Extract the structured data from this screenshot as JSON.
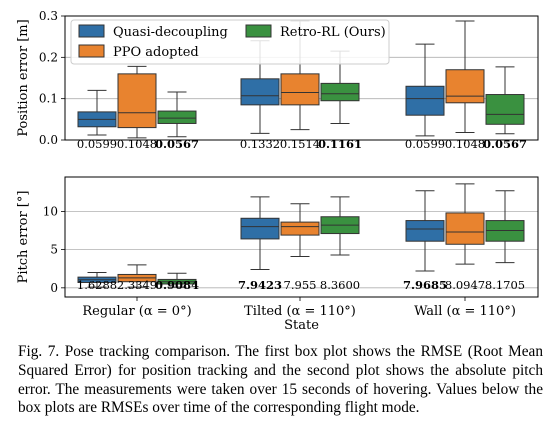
{
  "chart_data": [
    {
      "type": "box",
      "ylabel": "Position error [m]",
      "ylim": [
        0,
        0.3
      ],
      "yticks": [
        "0.0",
        "0.1",
        "0.2",
        "0.3"
      ],
      "grid": "y",
      "legend": {
        "placement": "top-left",
        "columns": 2,
        "entries": [
          "Quasi-decoupling",
          "PPO adopted",
          "Retro-RL (Ours)"
        ]
      },
      "categories": [
        "Regular",
        "Tilted",
        "Wall"
      ],
      "series": [
        {
          "name": "Quasi-decoupling",
          "color": "#2f6fa6",
          "boxes": [
            {
              "whislo": 0.012,
              "q1": 0.032,
              "med": 0.05,
              "q3": 0.068,
              "whishi": 0.12
            },
            {
              "whislo": 0.016,
              "q1": 0.085,
              "med": 0.107,
              "q3": 0.148,
              "whishi": 0.24
            },
            {
              "whislo": 0.01,
              "q1": 0.06,
              "med": 0.1,
              "q3": 0.13,
              "whishi": 0.232
            }
          ]
        },
        {
          "name": "PPO adopted",
          "color": "#e8832f",
          "boxes": [
            {
              "whislo": 0.005,
              "q1": 0.03,
              "med": 0.066,
              "q3": 0.16,
              "whishi": 0.178
            },
            {
              "whislo": 0.025,
              "q1": 0.085,
              "med": 0.115,
              "q3": 0.16,
              "whishi": 0.288
            },
            {
              "whislo": 0.018,
              "q1": 0.09,
              "med": 0.106,
              "q3": 0.17,
              "whishi": 0.288
            }
          ]
        },
        {
          "name": "Retro-RL (Ours)",
          "color": "#3a9140",
          "boxes": [
            {
              "whislo": 0.008,
              "q1": 0.04,
              "med": 0.053,
              "q3": 0.07,
              "whishi": 0.116
            },
            {
              "whislo": 0.04,
              "q1": 0.095,
              "med": 0.112,
              "q3": 0.137,
              "whishi": 0.215
            },
            {
              "whislo": 0.015,
              "q1": 0.038,
              "med": 0.062,
              "q3": 0.11,
              "whishi": 0.177
            }
          ]
        }
      ],
      "rmse_labels": [
        [
          {
            "text": "0.0599",
            "bold": false
          },
          {
            "text": "0.1048",
            "bold": false
          },
          {
            "text": "0.0567",
            "bold": true
          }
        ],
        [
          {
            "text": "0.1332",
            "bold": false
          },
          {
            "text": "0.1514",
            "bold": false
          },
          {
            "text": "0.1161",
            "bold": true
          }
        ],
        [
          {
            "text": "0.0599",
            "bold": false
          },
          {
            "text": "0.1048",
            "bold": false
          },
          {
            "text": "0.0567",
            "bold": true
          }
        ]
      ]
    },
    {
      "type": "box",
      "ylabel": "Pitch error [°]",
      "ylim": [
        -1.2,
        14.5
      ],
      "yticks": [
        "0",
        "5",
        "10"
      ],
      "grid": "y",
      "xlabel": "State",
      "categories": [
        "Regular (α = 0°)",
        "Tilted (α = 110°)",
        "Wall (α = 110°)"
      ],
      "series": [
        {
          "name": "Quasi-decoupling",
          "color": "#2f6fa6",
          "boxes": [
            {
              "whislo": 0.1,
              "q1": 0.7,
              "med": 1.05,
              "q3": 1.4,
              "whishi": 2.0
            },
            {
              "whislo": 2.4,
              "q1": 6.4,
              "med": 8.0,
              "q3": 9.1,
              "whishi": 11.9
            },
            {
              "whislo": 2.2,
              "q1": 6.1,
              "med": 7.7,
              "q3": 8.8,
              "whishi": 12.7
            }
          ]
        },
        {
          "name": "PPO adopted",
          "color": "#e8832f",
          "boxes": [
            {
              "whislo": 0.1,
              "q1": 0.8,
              "med": 1.3,
              "q3": 1.75,
              "whishi": 3.0
            },
            {
              "whislo": 4.1,
              "q1": 6.9,
              "med": 8.0,
              "q3": 8.6,
              "whishi": 11.0
            },
            {
              "whislo": 3.1,
              "q1": 5.7,
              "med": 7.3,
              "q3": 9.8,
              "whishi": 13.6
            }
          ]
        },
        {
          "name": "Retro-RL (Ours)",
          "color": "#3a9140",
          "boxes": [
            {
              "whislo": 0.1,
              "q1": 0.5,
              "med": 0.8,
              "q3": 1.1,
              "whishi": 1.9
            },
            {
              "whislo": 4.3,
              "q1": 7.1,
              "med": 8.2,
              "q3": 9.3,
              "whishi": 11.9
            },
            {
              "whislo": 3.3,
              "q1": 6.1,
              "med": 7.5,
              "q3": 8.8,
              "whishi": 12.7
            }
          ]
        }
      ],
      "rmse_labels": [
        [
          {
            "text": "1.6288",
            "bold": false
          },
          {
            "text": "2.3349",
            "bold": false
          },
          {
            "text": "0.9084",
            "bold": true
          }
        ],
        [
          {
            "text": "7.9423",
            "bold": true
          },
          {
            "text": "7.955",
            "bold": false
          },
          {
            "text": "8.3600",
            "bold": false
          }
        ],
        [
          {
            "text": "7.9685",
            "bold": true
          },
          {
            "text": "8.0947",
            "bold": false
          },
          {
            "text": "8.1705",
            "bold": false
          }
        ]
      ]
    }
  ],
  "caption": "Fig. 7. Pose tracking comparison. The first box plot shows the RMSE (Root Mean Squared Error) for position tracking and the second plot shows the absolute pitch error. The measurements were taken over 15 seconds of hovering. Values below the box plots are RMSEs over time of the corresponding flight mode."
}
